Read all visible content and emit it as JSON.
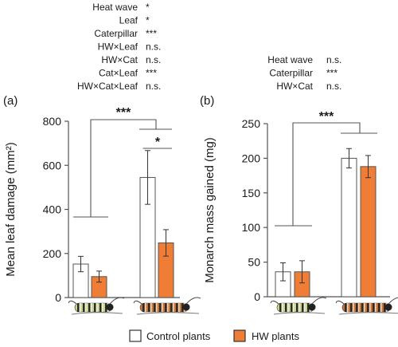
{
  "colors": {
    "control": "#ffffff",
    "hw": "#ef7d35",
    "line": "#555555"
  },
  "legend": {
    "control": "Control plants",
    "hw": "HW plants"
  },
  "chart_data": [
    {
      "type": "bar",
      "panel": "(a)",
      "ylabel": "Mean leaf damage (mm²)",
      "ylim": [
        0,
        800
      ],
      "yticks": [
        "0",
        "200",
        "400",
        "600",
        "800"
      ],
      "categories": [
        "Small caterpillar",
        "Large caterpillar"
      ],
      "series": [
        {
          "name": "Control plants",
          "values": [
            152,
            545
          ],
          "errors": [
            35,
            122
          ]
        },
        {
          "name": "HW plants",
          "values": [
            95,
            248
          ],
          "errors": [
            25,
            60
          ]
        }
      ],
      "stats": [
        {
          "term": "Heat wave",
          "sig": "*"
        },
        {
          "term": "Leaf",
          "sig": "*"
        },
        {
          "term": "Caterpillar",
          "sig": "***"
        },
        {
          "term": "HW×Leaf",
          "sig": "n.s."
        },
        {
          "term": "HW×Cat",
          "sig": "n.s."
        },
        {
          "term": "Cat×Leaf",
          "sig": "***"
        },
        {
          "term": "HW×Cat×Leaf",
          "sig": "n.s."
        }
      ],
      "annotations": {
        "between_groups": "***",
        "within_group": "*"
      }
    },
    {
      "type": "bar",
      "panel": "(b)",
      "ylabel": "Monarch mass gained (mg)",
      "ylim": [
        0,
        250
      ],
      "yticks": [
        "0",
        "50",
        "100",
        "150",
        "200",
        "250"
      ],
      "categories": [
        "Small caterpillar",
        "Large caterpillar"
      ],
      "series": [
        {
          "name": "Control plants",
          "values": [
            36,
            200
          ],
          "errors": [
            13,
            14
          ]
        },
        {
          "name": "HW plants",
          "values": [
            36,
            188
          ],
          "errors": [
            16,
            16
          ]
        }
      ],
      "stats": [
        {
          "term": "Heat wave",
          "sig": "n.s."
        },
        {
          "term": "Caterpillar",
          "sig": "***"
        },
        {
          "term": "HW×Cat",
          "sig": "n.s."
        }
      ],
      "annotations": {
        "between_groups": "***"
      }
    }
  ]
}
